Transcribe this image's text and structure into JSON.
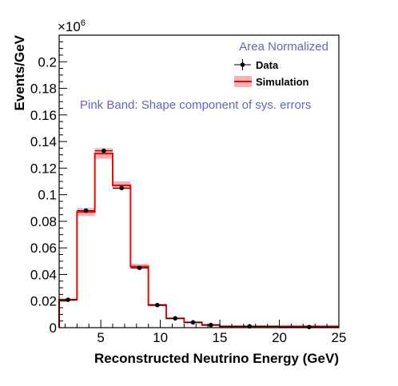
{
  "chart_data": {
    "type": "line",
    "xlabel": "Reconstructed Neutrino Energy (GeV)",
    "ylabel": "Events/GeV",
    "y_multiplier": "×10",
    "y_multiplier_exponent": "6",
    "xlim": [
      1.5,
      25
    ],
    "ylim": [
      0,
      0.22
    ],
    "x_ticks": [
      5,
      10,
      15,
      20,
      25
    ],
    "x_tick_labels": [
      "5",
      "10",
      "15",
      "20",
      "25"
    ],
    "y_ticks": [
      0,
      0.02,
      0.04,
      0.06,
      0.08,
      0.1,
      0.12,
      0.14,
      0.16,
      0.18,
      0.2
    ],
    "y_tick_labels": [
      "0",
      "0.02",
      "0.04",
      "0.06",
      "0.08",
      "0.1",
      "0.12",
      "0.14",
      "0.16",
      "0.18",
      "0.2"
    ],
    "annotations": {
      "area_normalized": "Area Normalized",
      "pink_band": "Pink Band: Shape component of sys. errors"
    },
    "legend": {
      "position": "top-right",
      "entries": [
        {
          "label": "Data",
          "marker": "point-with-error"
        },
        {
          "label": "Simulation",
          "marker": "line-with-band"
        }
      ]
    },
    "bin_edges": [
      1.5,
      3,
      4.5,
      6,
      7.5,
      9,
      10.5,
      12,
      13.5,
      15,
      20,
      25
    ],
    "series": [
      {
        "name": "Simulation",
        "values": [
          0.021,
          0.087,
          0.131,
          0.107,
          0.046,
          0.017,
          0.007,
          0.004,
          0.002,
          0.001,
          0.001
        ],
        "band": [
          0.001,
          0.003,
          0.004,
          0.003,
          0.002,
          0.001,
          0.0005,
          0.0004,
          0.0003,
          0.0002,
          0.0002
        ]
      },
      {
        "name": "Data",
        "x": [
          2.25,
          3.75,
          5.25,
          6.75,
          8.25,
          9.75,
          11.25,
          12.75,
          14.25,
          17.5,
          22.5
        ],
        "values": [
          0.021,
          0.088,
          0.133,
          0.105,
          0.045,
          0.017,
          0.007,
          0.004,
          0.002,
          0.001,
          0.0005
        ]
      }
    ],
    "colors": {
      "simulation_line": "#ff0000",
      "band": "#f6b3b3",
      "data": "#000000",
      "annotation_text": "#6464c8"
    }
  }
}
